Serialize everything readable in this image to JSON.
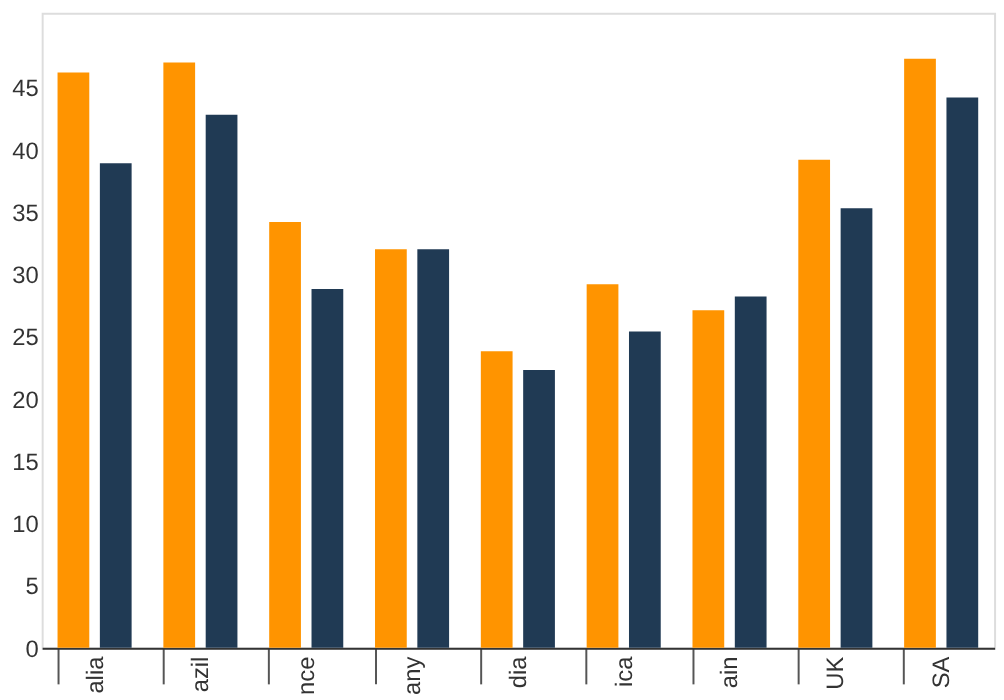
{
  "chart_data": {
    "type": "bar",
    "categories": [
      "alia",
      "azil",
      "nce",
      "any",
      "dia",
      "ica",
      "ain",
      "UK",
      "SA"
    ],
    "series": [
      {
        "color": "#ff9400",
        "values": [
          46.2,
          47.0,
          34.2,
          32.0,
          23.8,
          29.2,
          27.1,
          39.2,
          47.3
        ]
      },
      {
        "color": "#203a54",
        "values": [
          38.9,
          42.8,
          28.8,
          32.0,
          22.3,
          25.4,
          28.2,
          35.3,
          44.2
        ]
      }
    ],
    "ylim": [
      0,
      51
    ],
    "yticks": [
      0,
      5,
      10,
      15,
      20,
      25,
      30,
      35,
      40,
      45
    ],
    "grid": false,
    "legend": false
  }
}
